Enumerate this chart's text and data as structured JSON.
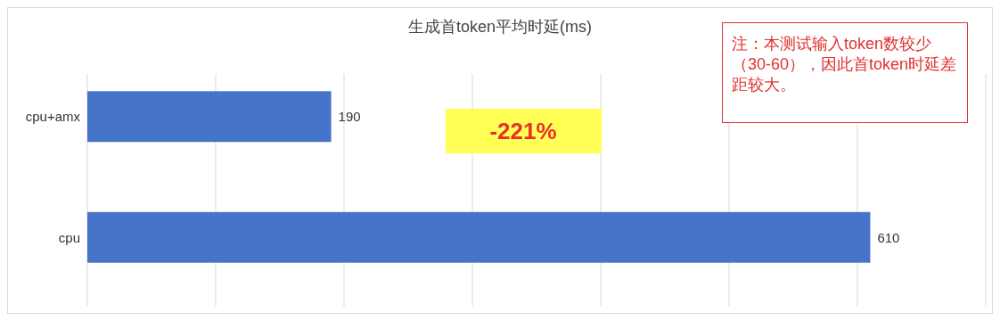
{
  "chart_data": {
    "type": "bar",
    "orientation": "horizontal",
    "title": "生成首token平均时延(ms)",
    "categories": [
      "cpu+amx",
      "cpu"
    ],
    "series": [
      {
        "color": "#4674c8",
        "values": [
          190,
          610
        ]
      }
    ],
    "xlim": [
      0,
      700
    ],
    "xticks": [
      {
        "value": 0,
        "label": null
      },
      {
        "value": 100,
        "label": null
      },
      {
        "value": 200,
        "label": null
      },
      {
        "value": 300,
        "label": null
      },
      {
        "value": 400,
        "label": null
      },
      {
        "value": 500,
        "label": null
      },
      {
        "value": 600,
        "label": null
      },
      {
        "value": 700,
        "label": null
      }
    ],
    "tick_labels": "y",
    "grid": "x",
    "data_labels": true,
    "annotations": [
      "-221%",
      "注：本测试输入token数较少（30-60），因此首token时延差距较大。"
    ]
  }
}
